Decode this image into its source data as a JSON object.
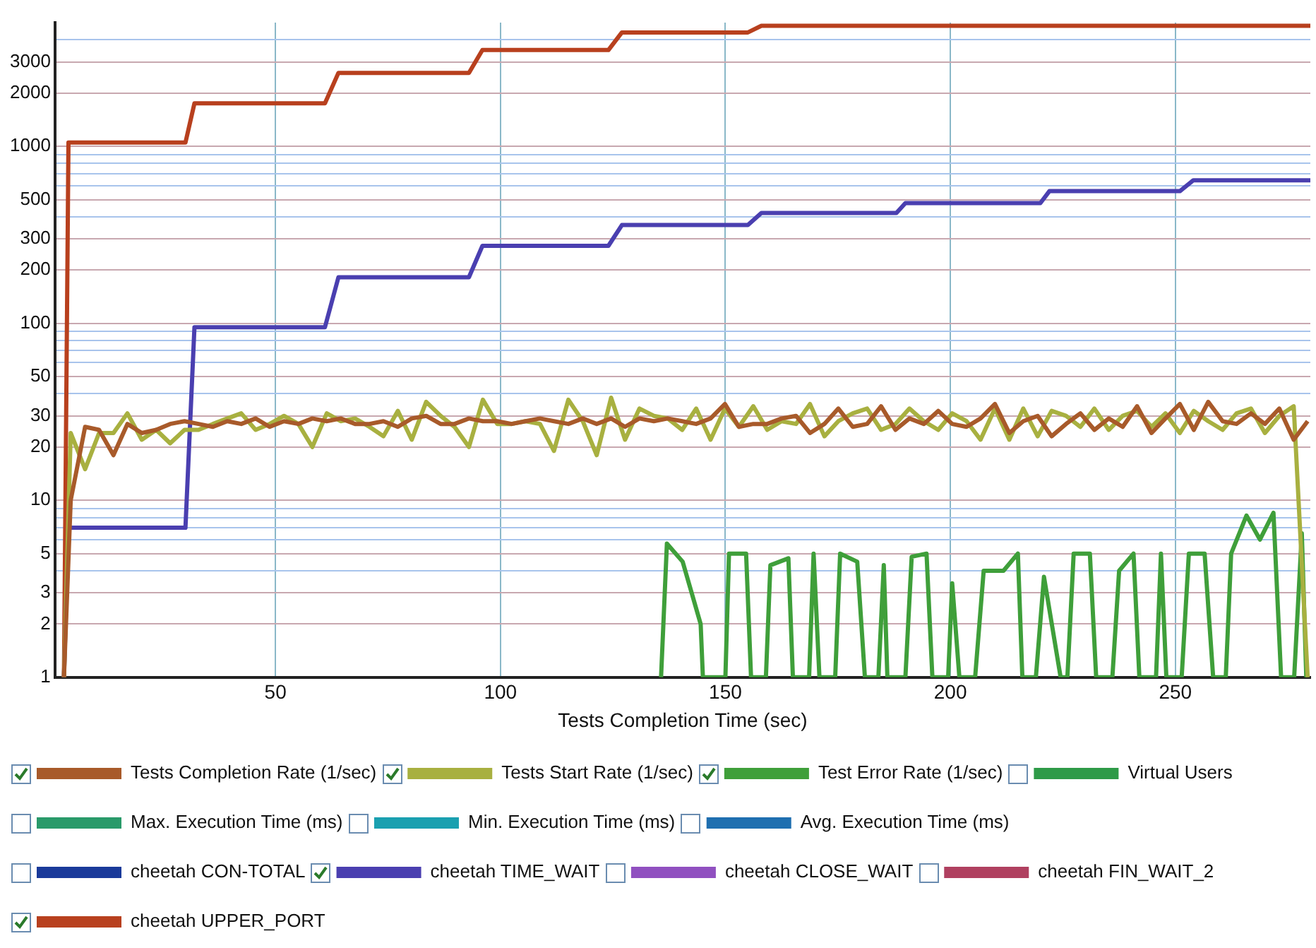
{
  "chart_data": {
    "type": "line",
    "xlabel": "Tests Completion Time (sec)",
    "log": "y",
    "grid": true,
    "legend": "bottom",
    "xlim": [
      1,
      280
    ],
    "xticks": [
      50,
      100,
      150,
      200,
      250
    ],
    "ylim": [
      1,
      5000
    ],
    "yticks": [
      1,
      2,
      3,
      {
        "value": 4,
        "label": null
      },
      5,
      {
        "value": 6,
        "label": null
      },
      {
        "value": 7,
        "label": null
      },
      {
        "value": 8,
        "label": null
      },
      {
        "value": 9,
        "label": null
      },
      10,
      20,
      30,
      {
        "value": 40,
        "label": null
      },
      50,
      {
        "value": 60,
        "label": null
      },
      {
        "value": 70,
        "label": null
      },
      {
        "value": 80,
        "label": null
      },
      {
        "value": 90,
        "label": null
      },
      100,
      200,
      300,
      {
        "value": 400,
        "label": null
      },
      500,
      {
        "value": 600,
        "label": null
      },
      {
        "value": 700,
        "label": null
      },
      {
        "value": 800,
        "label": null
      },
      {
        "value": 900,
        "label": null
      },
      1000,
      2000,
      3000,
      {
        "value": 4000,
        "label": null
      }
    ],
    "series": [
      {
        "name": "Tests Completion Rate (1/sec)",
        "color": "#a85a2a",
        "x": [
          3,
          4.5,
          7.7,
          10.8,
          14.0,
          17.1,
          20.3,
          23.5,
          26.6,
          29.8,
          32.9,
          36.1,
          39.3,
          42.4,
          45.6,
          48.7,
          51.9,
          55.1,
          58.2,
          61.4,
          64.5,
          67.7,
          70.9,
          74.0,
          77.2,
          80.3,
          83.5,
          86.7,
          89.8,
          93.0,
          96.1,
          99.3,
          102.5,
          105.6,
          108.8,
          111.9,
          115.1,
          118.3,
          121.4,
          124.6,
          127.7,
          130.9,
          134.1,
          137.2,
          140.4,
          143.5,
          146.7,
          149.9,
          153.0,
          156.2,
          159.3,
          162.5,
          165.7,
          168.8,
          172.0,
          175.1,
          178.3,
          181.5,
          184.6,
          187.8,
          190.9,
          194.1,
          197.3,
          200.4,
          203.6,
          206.7,
          209.9,
          213.1,
          216.2,
          219.4,
          222.5,
          225.7,
          228.9,
          232.0,
          235.2,
          238.3,
          241.5,
          244.7,
          247.8,
          251.0,
          254.1,
          257.3,
          260.5,
          263.6,
          266.8,
          269.9,
          273.1,
          276.3,
          279.4
        ],
        "values": [
          1,
          10,
          26,
          25,
          18,
          27,
          24,
          25,
          27,
          28,
          27,
          26,
          28,
          27,
          29,
          26,
          28,
          27,
          29,
          28,
          29,
          27,
          27,
          28,
          26,
          29,
          30,
          27,
          27,
          29,
          28,
          28,
          27,
          28,
          29,
          28,
          27,
          29,
          27,
          29,
          26,
          29,
          28,
          29,
          28,
          27,
          29,
          35,
          26,
          27,
          27,
          29,
          30,
          24,
          27,
          33,
          26,
          27,
          34,
          25,
          29,
          27,
          32,
          27,
          26,
          29,
          35,
          24,
          28,
          30,
          23,
          27,
          31,
          25,
          29,
          26,
          34,
          24,
          29,
          35,
          25,
          36,
          28,
          27,
          31,
          27,
          33,
          22,
          28
        ]
      },
      {
        "name": "Tests Start Rate (1/sec)",
        "color": "#a8b040",
        "x": [
          3,
          4.5,
          7.7,
          10.8,
          14.0,
          17.1,
          20.3,
          23.5,
          26.6,
          29.8,
          32.9,
          36.1,
          39.3,
          42.4,
          45.6,
          48.7,
          51.9,
          55.1,
          58.2,
          61.4,
          64.5,
          67.7,
          70.9,
          74.0,
          77.2,
          80.3,
          83.5,
          86.7,
          89.8,
          93.0,
          96.1,
          99.3,
          102.5,
          105.6,
          108.8,
          111.9,
          115.1,
          118.3,
          121.4,
          124.6,
          127.7,
          130.9,
          134.1,
          137.2,
          140.4,
          143.5,
          146.7,
          149.9,
          153.0,
          156.2,
          159.3,
          162.5,
          165.7,
          168.8,
          172.0,
          175.1,
          178.3,
          181.5,
          184.6,
          187.8,
          190.9,
          194.1,
          197.3,
          200.4,
          203.6,
          206.7,
          209.9,
          213.1,
          216.2,
          219.4,
          222.5,
          225.7,
          228.9,
          232.0,
          235.2,
          238.3,
          241.5,
          244.7,
          247.8,
          251.0,
          254.1,
          257.3,
          260.5,
          263.6,
          266.8,
          269.9,
          273.1,
          276.3,
          279.4
        ],
        "values": [
          1,
          24,
          15,
          24,
          24,
          31,
          22,
          25,
          21,
          25,
          25,
          27,
          29,
          31,
          25,
          27,
          30,
          27,
          20,
          31,
          28,
          29,
          26,
          23,
          32,
          22,
          36,
          30,
          26,
          20,
          37,
          27,
          27,
          28,
          27,
          19,
          37,
          28,
          18,
          38,
          22,
          33,
          30,
          29,
          25,
          33,
          22,
          33,
          26,
          34,
          25,
          28,
          27,
          35,
          23,
          28,
          31,
          33,
          25,
          27,
          33,
          28,
          25,
          31,
          28,
          22,
          33,
          22,
          33,
          23,
          32,
          30,
          26,
          33,
          25,
          30,
          32,
          26,
          31,
          24,
          32,
          28,
          25,
          31,
          33,
          24,
          30,
          34,
          1
        ]
      },
      {
        "name": "Test Error Rate (1/sec)",
        "color": "#3f9f3a",
        "x": [
          135.7,
          137,
          140.5,
          144.5,
          145,
          150,
          150.8,
          154.6,
          155.7,
          159,
          160,
          164,
          165,
          168.6,
          169.6,
          170.9,
          174.4,
          175.5,
          179.3,
          181,
          184,
          185.2,
          186,
          190,
          191.4,
          194.7,
          196,
          199.5,
          200.4,
          202,
          205.5,
          207.4,
          211.8,
          215,
          216,
          219,
          220.8,
          224.5,
          226,
          227.4,
          231,
          232.4,
          236,
          237.5,
          240.7,
          242,
          245.7,
          246.8,
          248,
          251.4,
          253,
          256.5,
          258.4,
          261.2,
          262.4,
          265.8,
          268.8,
          271.8,
          273.5,
          276.4,
          278.1,
          279.1
        ],
        "values": [
          1,
          5.7,
          4.5,
          2,
          1,
          1,
          5,
          5,
          1,
          1,
          4.3,
          4.7,
          1,
          1,
          5,
          1,
          1,
          5,
          4.5,
          1,
          1,
          4.3,
          1,
          1,
          4.8,
          5,
          1,
          1,
          3.4,
          1,
          1,
          4,
          4,
          5,
          1,
          1,
          3.7,
          1,
          1,
          5,
          5,
          1,
          1,
          4,
          5,
          1,
          1,
          5,
          1,
          1,
          5,
          5,
          1,
          1,
          5,
          8.2,
          6,
          8.5,
          1,
          1,
          6.5,
          1
        ]
      },
      {
        "name": "Virtual Users",
        "color": "#2e9a48"
      },
      {
        "name": "Max. Execution Time (ms)",
        "color": "#2a9a6a"
      },
      {
        "name": "Min. Execution Time (ms)",
        "color": "#1aa0b0"
      },
      {
        "name": "Avg. Execution Time (ms)",
        "color": "#1f6fb0"
      },
      {
        "name": "cheetah CON-TOTAL",
        "color": "#1a3a9a"
      },
      {
        "name": "cheetah TIME_WAIT",
        "color": "#4a3fb0",
        "x": [
          3,
          4,
          30,
          32,
          61,
          64,
          93,
          96,
          124,
          127,
          155,
          158,
          188,
          190,
          220,
          222,
          251,
          254,
          280
        ],
        "values": [
          1,
          7,
          7,
          95,
          95,
          182,
          182,
          274,
          274,
          359,
          359,
          420,
          420,
          478,
          478,
          558,
          558,
          643,
          643
        ]
      },
      {
        "name": "cheetah CLOSE_WAIT",
        "color": "#9050c0"
      },
      {
        "name": "cheetah FIN_WAIT_2",
        "color": "#b04060"
      },
      {
        "name": "cheetah UPPER_PORT",
        "color": "#b8401e",
        "x": [
          3,
          4,
          30,
          32,
          61,
          64,
          93,
          96,
          124,
          127,
          155,
          158,
          280
        ],
        "values": [
          1,
          1050,
          1050,
          1750,
          1750,
          2600,
          2600,
          3500,
          3500,
          4400,
          4400,
          4800,
          4800
        ]
      }
    ]
  }
}
